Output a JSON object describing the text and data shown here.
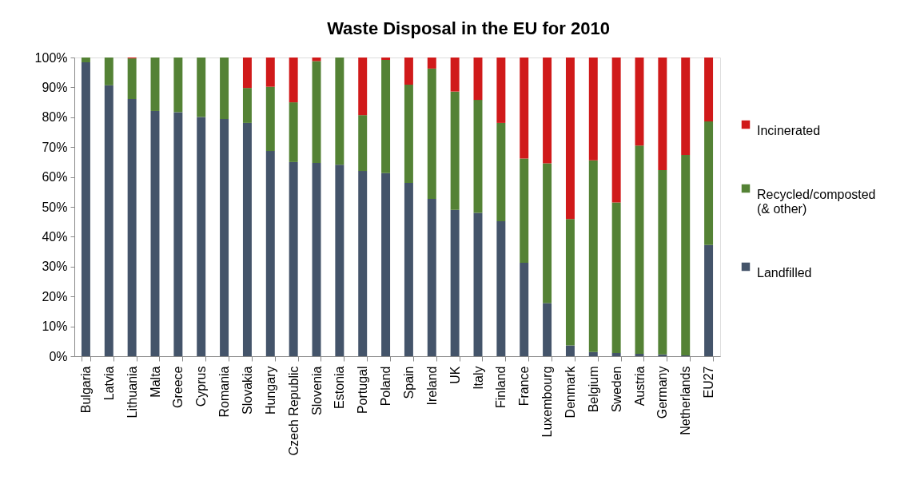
{
  "chart_data": {
    "type": "bar",
    "title": "Waste Disposal in the EU for 2010",
    "stacked": true,
    "legend": "right",
    "categories": [
      "Bulgaria",
      "Latvia",
      "Lithuania",
      "Malta",
      "Greece",
      "Cyprus",
      "Romania",
      "Slovakia",
      "Hungary",
      "Czech Republic",
      "Slovenia",
      "Estonia",
      "Portugal",
      "Poland",
      "Spain",
      "Ireland",
      "UK",
      "Italy",
      "Finland",
      "France",
      "Luxembourg",
      "Denmark",
      "Belgium",
      "Sweden",
      "Austria",
      "Germany",
      "Netherlands",
      "EU27"
    ],
    "series": [
      {
        "name": "Landfilled",
        "color": "#44546a",
        "values": [
          98.4,
          90.7,
          86.1,
          82.1,
          81.7,
          80.1,
          79.4,
          78.1,
          68.7,
          65.0,
          64.7,
          64.1,
          62.0,
          61.3,
          58.0,
          52.7,
          49.0,
          48.0,
          45.2,
          31.3,
          17.8,
          3.6,
          1.4,
          1.1,
          0.8,
          0.6,
          0.3,
          37.2
        ]
      },
      {
        "name": "Recycled/composted (& other)",
        "color": "#548235",
        "values": [
          1.6,
          9.3,
          13.6,
          17.9,
          18.3,
          19.9,
          20.6,
          11.7,
          21.5,
          20.0,
          34.1,
          35.9,
          18.7,
          37.9,
          32.9,
          43.6,
          39.6,
          37.8,
          32.9,
          34.9,
          46.8,
          42.3,
          64.2,
          50.4,
          69.7,
          61.7,
          67.1,
          41.4
        ]
      },
      {
        "name": "Incinerated",
        "color": "#d01a1a",
        "values": [
          0,
          0,
          0.3,
          0,
          0,
          0,
          0,
          10.2,
          9.8,
          15.0,
          1.2,
          0,
          19.3,
          0.8,
          9.1,
          3.7,
          11.4,
          14.2,
          21.9,
          33.8,
          35.4,
          54.1,
          34.4,
          48.5,
          29.5,
          37.7,
          32.6,
          21.4
        ]
      }
    ],
    "ylim": [
      0,
      100
    ],
    "yticks": [
      {
        "value": 0,
        "label": "0%"
      },
      {
        "value": 10,
        "label": "10%"
      },
      {
        "value": 20,
        "label": "20%"
      },
      {
        "value": 30,
        "label": "30%"
      },
      {
        "value": 40,
        "label": "40%"
      },
      {
        "value": 50,
        "label": "50%"
      },
      {
        "value": 60,
        "label": "60%"
      },
      {
        "value": 70,
        "label": "70%"
      },
      {
        "value": 80,
        "label": "80%"
      },
      {
        "value": 90,
        "label": "90%"
      },
      {
        "value": 100,
        "label": "100%"
      }
    ]
  }
}
